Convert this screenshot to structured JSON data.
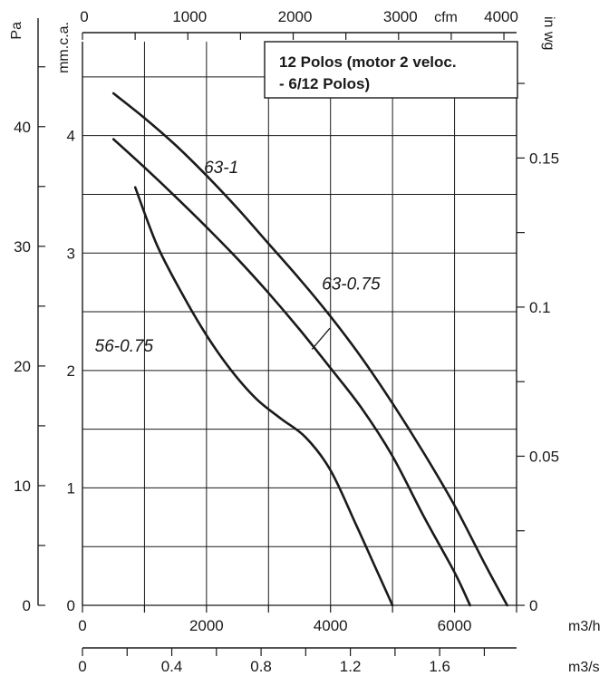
{
  "chart_data": {
    "type": "line",
    "title_lines": [
      "12 Polos (motor 2 veloc.",
      "- 6/12 Polos)"
    ],
    "axes": {
      "x_m3h": {
        "unit": "m3/h",
        "range": [
          0,
          7000
        ],
        "ticks": [
          0,
          2000,
          4000,
          6000
        ],
        "tick_labels": [
          "0",
          "2000",
          "4000",
          "6000"
        ]
      },
      "x_m3s": {
        "unit": "m3/s",
        "range": [
          0,
          1.9444
        ],
        "ticks": [
          0,
          0.4,
          0.8,
          1.2,
          1.6
        ],
        "tick_labels": [
          "0",
          "0.4",
          "0.8",
          "1.2",
          "1.6"
        ]
      },
      "x_cfm": {
        "unit": "cfm",
        "range": [
          0,
          4120
        ],
        "ticks": [
          0,
          1000,
          2000,
          3000,
          4000
        ],
        "tick_labels": [
          "0",
          "1000",
          "2000",
          "3000",
          "4000"
        ]
      },
      "y_mmca": {
        "unit": "mm.c.a.",
        "range": [
          0,
          4.8
        ],
        "ticks": [
          0,
          1,
          2,
          3,
          4
        ],
        "tick_labels": [
          "0",
          "1",
          "2",
          "3",
          "4"
        ]
      },
      "y_pa": {
        "unit": "Pa",
        "range": [
          0,
          47.1
        ],
        "ticks": [
          0,
          10,
          20,
          30,
          40
        ],
        "tick_labels": [
          "0",
          "10",
          "20",
          "30",
          "40"
        ]
      },
      "y_inwg": {
        "unit": "in wg",
        "range": [
          0,
          0.189
        ],
        "ticks": [
          0,
          0.05,
          0.1,
          0.15
        ],
        "tick_labels": [
          "0",
          "0.05",
          "0.1",
          "0.15"
        ]
      }
    },
    "grid": true,
    "legend_position": "top-right",
    "series": [
      {
        "name": "63-1",
        "x": [
          500,
          1000,
          1500,
          2000,
          2500,
          3000,
          3500,
          4000,
          4500,
          5000,
          5500,
          6000,
          6500,
          6850
        ],
        "y": [
          4.36,
          4.15,
          3.92,
          3.66,
          3.38,
          3.08,
          2.78,
          2.46,
          2.11,
          1.72,
          1.3,
          0.85,
          0.34,
          0.0
        ]
      },
      {
        "name": "63-0.75",
        "x": [
          500,
          1000,
          1500,
          2000,
          2500,
          3000,
          3500,
          4000,
          4500,
          5000,
          5500,
          6000,
          6250
        ],
        "y": [
          3.97,
          3.73,
          3.48,
          3.22,
          2.95,
          2.66,
          2.35,
          2.02,
          1.68,
          1.27,
          0.76,
          0.28,
          0.0
        ]
      },
      {
        "name": "56-0.75",
        "x": [
          850,
          1200,
          1600,
          2000,
          2400,
          2800,
          3200,
          3600,
          4000,
          4400,
          4700,
          5000
        ],
        "y": [
          3.56,
          3.07,
          2.66,
          2.3,
          2.0,
          1.76,
          1.59,
          1.43,
          1.15,
          0.7,
          0.35,
          0.0
        ]
      }
    ],
    "curve_labels": [
      {
        "series": "63-1",
        "text": "63-1",
        "x": 1960,
        "y": 3.68
      },
      {
        "series": "63-0.75",
        "text": "63-0.75",
        "x": 3860,
        "y": 2.69
      },
      {
        "series": "56-0.75",
        "text": "56-0.75",
        "x": 200,
        "y": 2.16
      }
    ],
    "leader_line": {
      "from": [
        3990,
        2.36
      ],
      "to": [
        3700,
        2.18
      ]
    }
  }
}
